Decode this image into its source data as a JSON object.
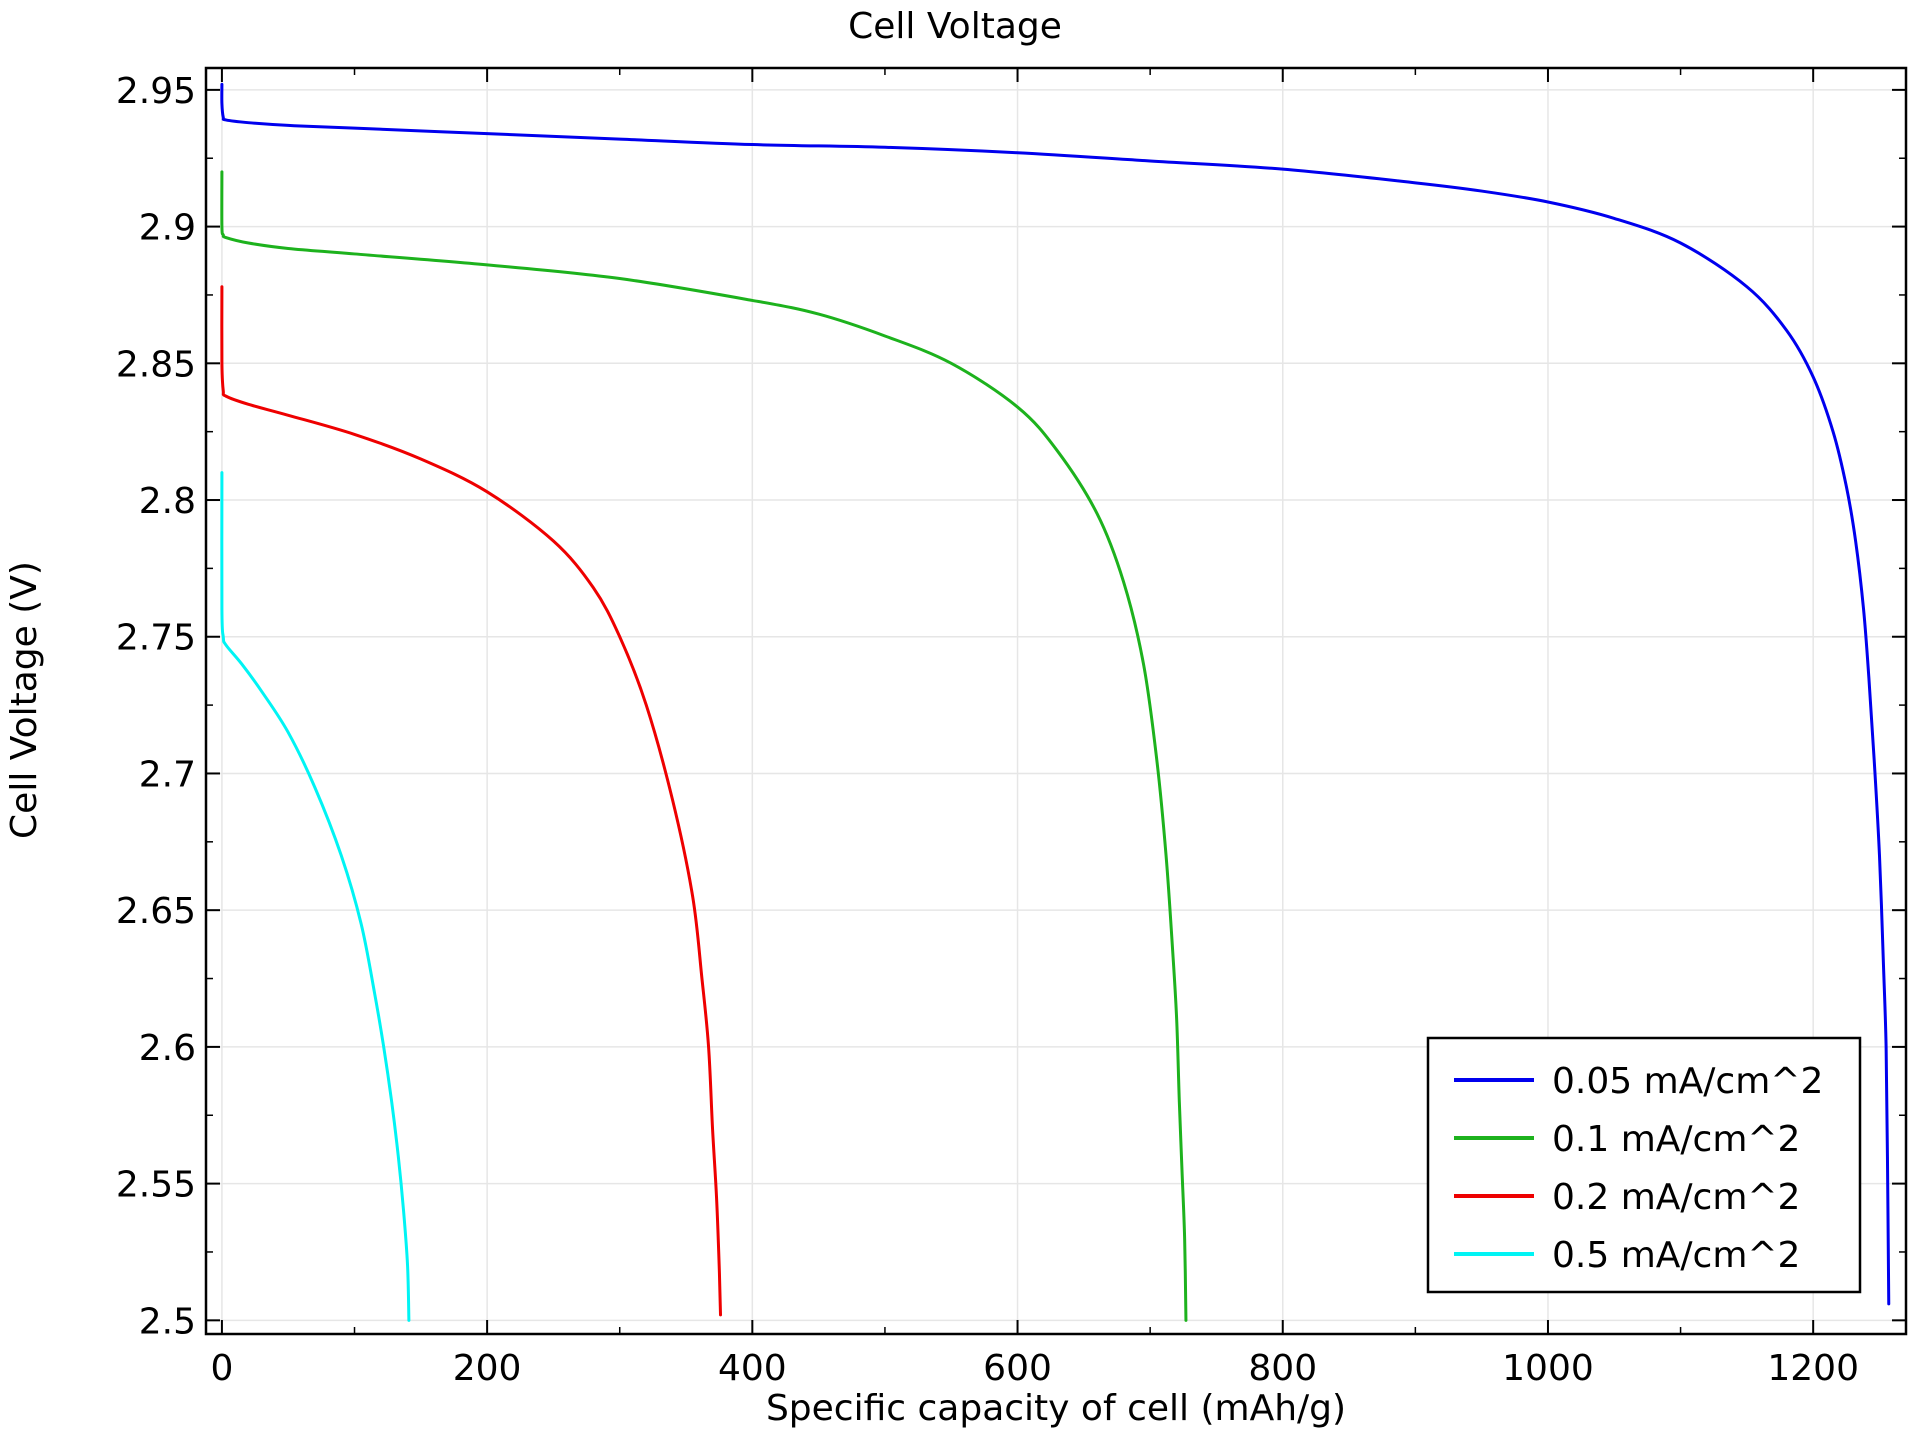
{
  "chart_data": {
    "type": "line",
    "title": "Cell Voltage",
    "xlabel": "Specific capacity of cell (mAh/g)",
    "ylabel": "Cell Voltage (V)",
    "xlim": [
      -12,
      1270
    ],
    "ylim": [
      2.495,
      2.958
    ],
    "xticks": [
      0,
      200,
      400,
      600,
      800,
      1000,
      1200
    ],
    "yticks": [
      2.5,
      2.55,
      2.6,
      2.65,
      2.7,
      2.75,
      2.8,
      2.85,
      2.9,
      2.95
    ],
    "ytick_labels": [
      "2.5",
      "2.55",
      "2.6",
      "2.65",
      "2.7",
      "2.75",
      "2.8",
      "2.85",
      "2.9",
      "2.95"
    ],
    "grid": true,
    "legend_position": "bottom-right",
    "series": [
      {
        "name": "0.05 mA/cm^2",
        "color": "#0000ee",
        "x": [
          0,
          0,
          1,
          3,
          20,
          50,
          100,
          200,
          300,
          400,
          500,
          600,
          700,
          800,
          900,
          950,
          1000,
          1050,
          1100,
          1150,
          1180,
          1200,
          1215,
          1225,
          1232,
          1238,
          1242,
          1246,
          1250,
          1253,
          1255,
          1256,
          1257
        ],
        "y": [
          2.952,
          2.945,
          2.94,
          2.939,
          2.938,
          2.937,
          2.936,
          2.934,
          2.932,
          2.93,
          2.929,
          2.927,
          2.924,
          2.921,
          2.916,
          2.913,
          2.909,
          2.903,
          2.894,
          2.878,
          2.862,
          2.845,
          2.825,
          2.805,
          2.785,
          2.76,
          2.735,
          2.705,
          2.67,
          2.63,
          2.6,
          2.56,
          2.506
        ]
      },
      {
        "name": "0.1 mA/cm^2",
        "color": "#1db21d",
        "x": [
          0,
          0,
          1,
          3,
          20,
          50,
          100,
          200,
          300,
          400,
          450,
          500,
          550,
          600,
          630,
          660,
          680,
          695,
          705,
          712,
          717,
          720,
          722,
          724,
          726,
          727
        ],
        "y": [
          2.92,
          2.9,
          2.897,
          2.896,
          2.894,
          2.892,
          2.89,
          2.886,
          2.881,
          2.873,
          2.868,
          2.86,
          2.85,
          2.834,
          2.818,
          2.795,
          2.77,
          2.74,
          2.705,
          2.67,
          2.635,
          2.61,
          2.58,
          2.555,
          2.53,
          2.5
        ]
      },
      {
        "name": "0.2 mA/cm^2",
        "color": "#ee0000",
        "x": [
          0,
          0,
          1,
          3,
          20,
          50,
          100,
          150,
          200,
          250,
          280,
          300,
          320,
          340,
          355,
          362,
          367,
          370,
          373,
          375,
          376
        ],
        "y": [
          2.878,
          2.85,
          2.84,
          2.838,
          2.835,
          2.831,
          2.824,
          2.815,
          2.803,
          2.785,
          2.768,
          2.75,
          2.725,
          2.69,
          2.655,
          2.625,
          2.6,
          2.57,
          2.545,
          2.52,
          2.502
        ]
      },
      {
        "name": "0.5 mA/cm^2",
        "color": "#00f4f4",
        "x": [
          0,
          0,
          1,
          3,
          15,
          30,
          50,
          70,
          90,
          105,
          115,
          122,
          128,
          133,
          137,
          140,
          141
        ],
        "y": [
          2.81,
          2.76,
          2.75,
          2.747,
          2.74,
          2.73,
          2.715,
          2.695,
          2.67,
          2.645,
          2.62,
          2.6,
          2.58,
          2.56,
          2.54,
          2.52,
          2.5
        ]
      }
    ]
  }
}
